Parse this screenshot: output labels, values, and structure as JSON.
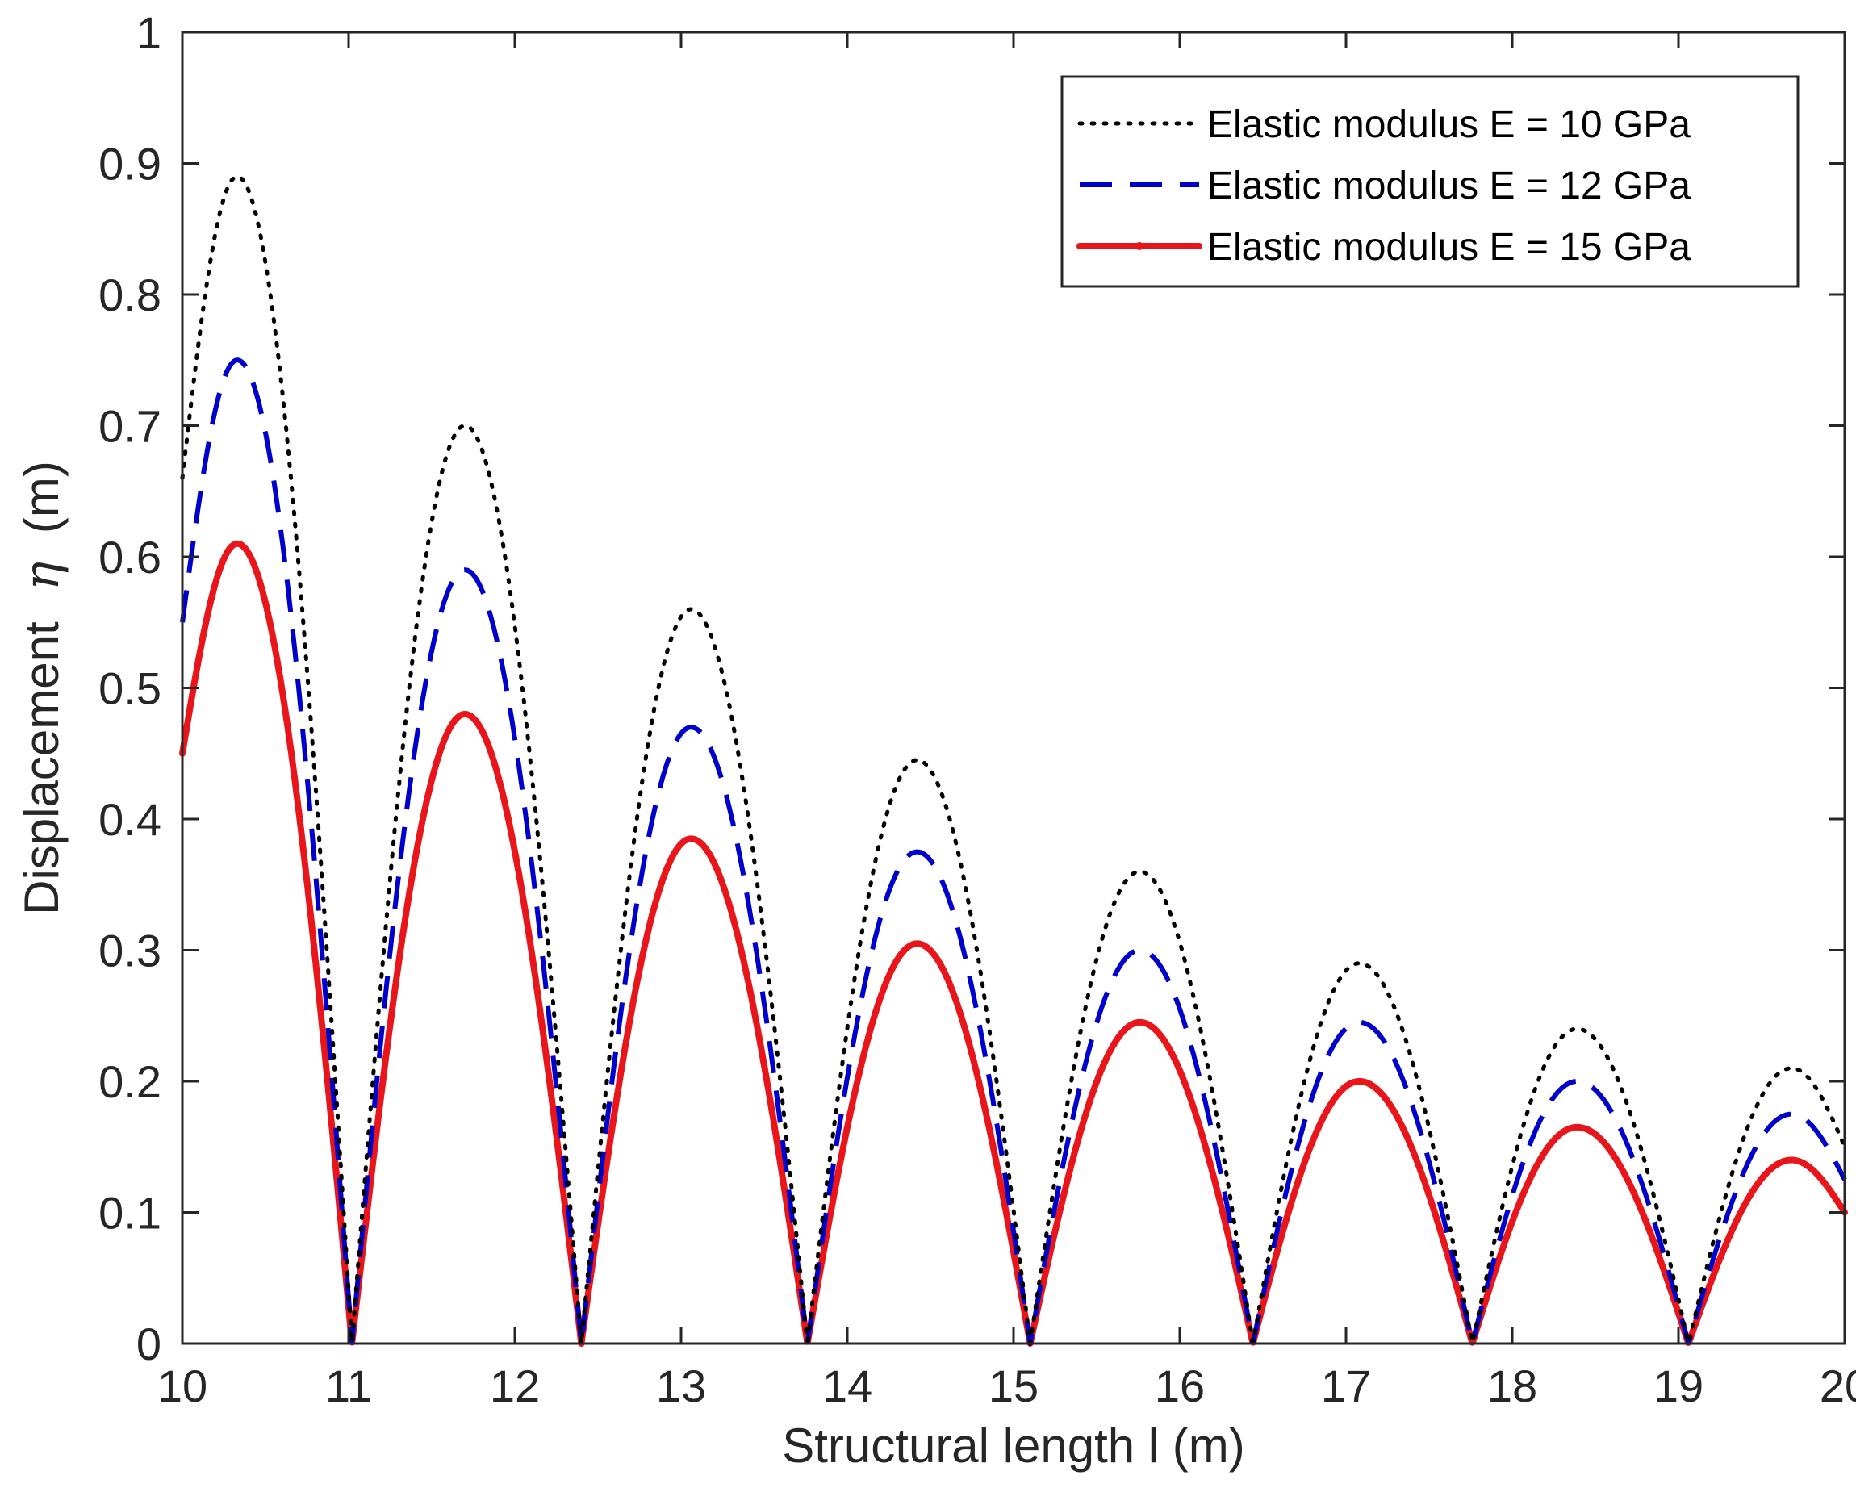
{
  "chart_data": {
    "type": "line",
    "title": "",
    "xlabel": "Structural length l (m)",
    "ylabel_prefix": "Displacement",
    "ylabel_symbol": "η",
    "ylabel_suffix": "(m)",
    "xlim": [
      10,
      20
    ],
    "ylim": [
      0,
      1
    ],
    "x_ticks": [
      10,
      11,
      12,
      13,
      14,
      15,
      16,
      17,
      18,
      19,
      20
    ],
    "y_ticks": [
      0,
      0.1,
      0.2,
      0.3,
      0.4,
      0.5,
      0.6,
      0.7,
      0.8,
      0.9,
      1
    ],
    "x_tick_labels": [
      "10",
      "11",
      "12",
      "13",
      "14",
      "15",
      "16",
      "17",
      "18",
      "19",
      "20"
    ],
    "y_tick_labels": [
      "0",
      "0.1",
      "0.2",
      "0.3",
      "0.4",
      "0.5",
      "0.6",
      "0.7",
      "0.8",
      "0.9",
      "1"
    ],
    "grid": false,
    "box": true,
    "legend_position": "top-right",
    "zeros": [
      11.02,
      12.4,
      13.76,
      15.1,
      16.44,
      17.76,
      19.06
    ],
    "peaks_x": [
      10.33,
      11.7,
      13.06,
      14.42,
      15.76,
      17.08,
      18.39,
      19.68
    ],
    "series": [
      {
        "name": "Elastic modulus E = 10 GPa",
        "style": "dotted",
        "color": "#000000",
        "start_value": 0.66,
        "peak_values": [
          0.89,
          0.7,
          0.56,
          0.445,
          0.36,
          0.29,
          0.24,
          0.21
        ],
        "end_value": 0.15
      },
      {
        "name": "Elastic modulus E = 12 GPa",
        "style": "dashed",
        "color": "#0000cc",
        "start_value": 0.55,
        "peak_values": [
          0.75,
          0.59,
          0.47,
          0.375,
          0.3,
          0.245,
          0.2,
          0.175
        ],
        "end_value": 0.125
      },
      {
        "name": "Elastic modulus E = 15 GPa",
        "style": "solid-marker",
        "color": "#e8161a",
        "start_value": 0.45,
        "peak_values": [
          0.61,
          0.48,
          0.385,
          0.305,
          0.245,
          0.2,
          0.165,
          0.14
        ],
        "end_value": 0.1
      }
    ]
  }
}
